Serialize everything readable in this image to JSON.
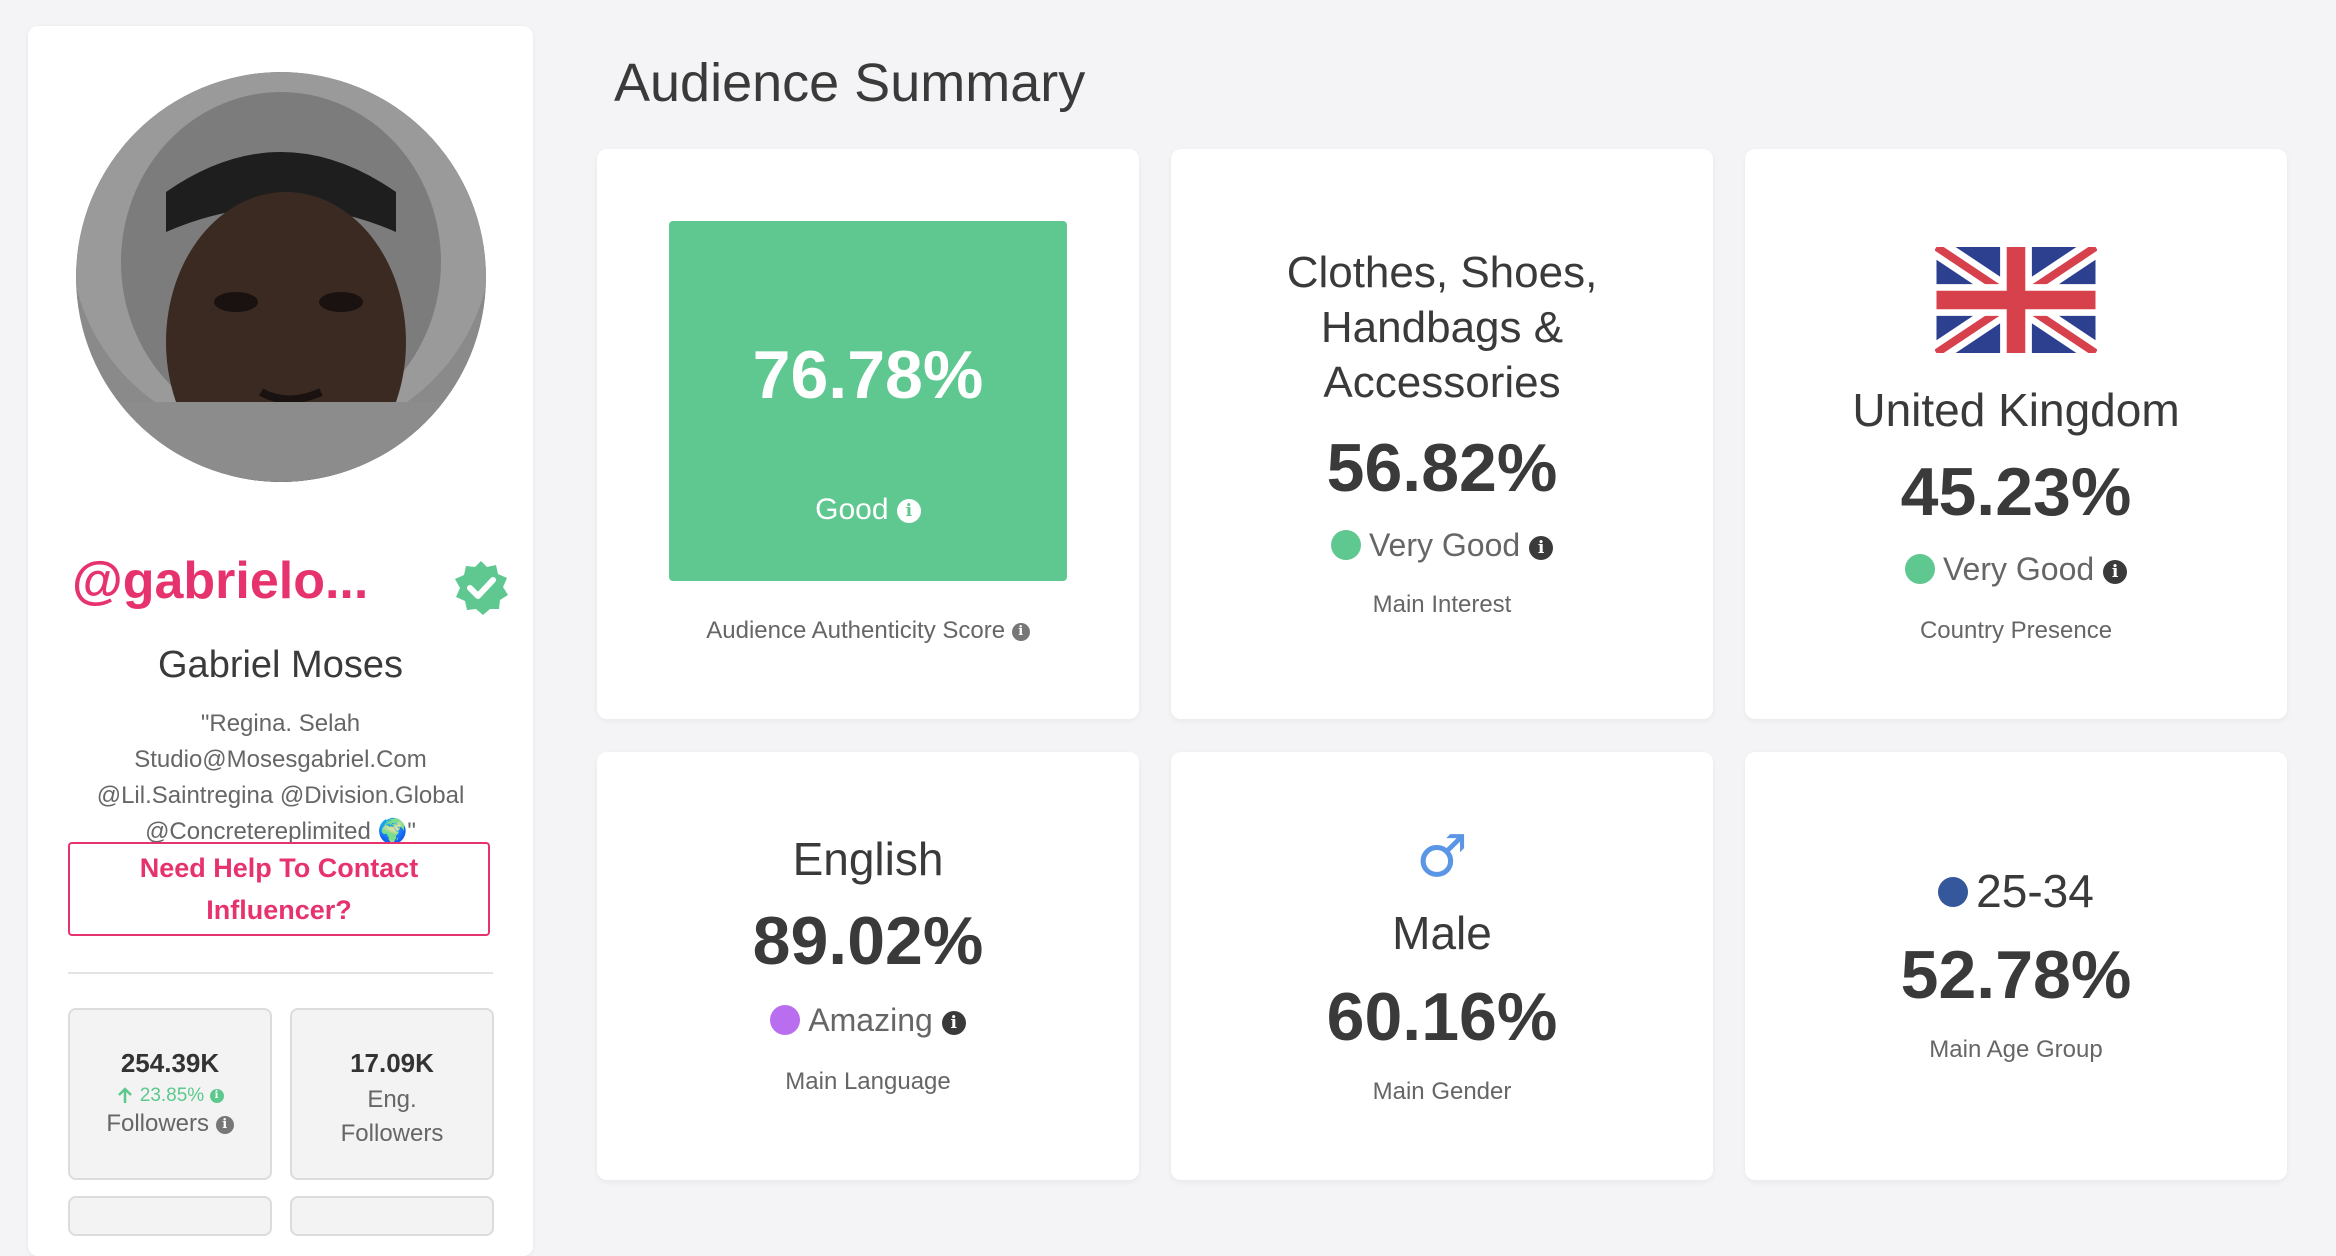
{
  "profile": {
    "handle": "@gabrielo...",
    "name": "Gabriel Moses",
    "bio_lines": [
      "\"Regina. Selah",
      "Studio@Mosesgabriel.Com",
      "@Lil.Saintregina @Division.Global",
      "@Concretereplimited 🌍\""
    ],
    "help_button": "Need Help To Contact Influencer?",
    "stats": [
      {
        "value": "254.39K",
        "change": "23.85%",
        "label": "Followers"
      },
      {
        "value": "17.09K",
        "label_line1": "Eng.",
        "label_line2": "Followers"
      }
    ]
  },
  "summary": {
    "title": "Audience Summary",
    "authenticity": {
      "value": "76.78%",
      "rating": "Good",
      "caption": "Audience Authenticity Score"
    },
    "interest": {
      "name_lines": [
        "Clothes, Shoes,",
        "Handbags &",
        "Accessories"
      ],
      "value": "56.82%",
      "rating": "Very Good",
      "caption": "Main Interest"
    },
    "country": {
      "name": "United Kingdom",
      "value": "45.23%",
      "rating": "Very Good",
      "caption": "Country Presence"
    },
    "language": {
      "name": "English",
      "value": "89.02%",
      "rating": "Amazing",
      "caption": "Main Language"
    },
    "gender": {
      "symbol": "♂",
      "name": "Male",
      "value": "60.16%",
      "caption": "Main Gender"
    },
    "age": {
      "name": "25-34",
      "value": "52.78%",
      "caption": "Main Age Group"
    }
  },
  "colors": {
    "brand_pink": "#e6336e",
    "good_green": "#5ec890",
    "amazing_purple": "#b96ef0",
    "age_blue": "#35579b",
    "male_blue": "#5b95e6"
  },
  "icons": {
    "verified": "verified-badge-icon",
    "info": "info-icon",
    "up": "arrow-up-icon",
    "flag": "uk-flag-icon",
    "male": "male-symbol-icon"
  }
}
